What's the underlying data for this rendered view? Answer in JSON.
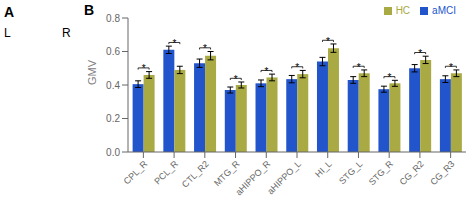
{
  "chart_data": {
    "type": "bar",
    "title": "B",
    "ylabel": "GMV",
    "categories": [
      "CPL_R",
      "PCL_R",
      "CTL_R2",
      "MTG_R",
      "aHIPPO_R",
      "aHIPPO_L",
      "HI_L",
      "STG_L",
      "STG_R",
      "CG_R2",
      "CG_R3"
    ],
    "series": [
      {
        "name": "aMCI",
        "color": "#2255cc",
        "values": [
          0.405,
          0.61,
          0.53,
          0.37,
          0.41,
          0.435,
          0.54,
          0.43,
          0.375,
          0.5,
          0.435
        ],
        "errors": [
          0.02,
          0.022,
          0.025,
          0.018,
          0.02,
          0.022,
          0.025,
          0.02,
          0.018,
          0.022,
          0.02
        ]
      },
      {
        "name": "HC",
        "color": "#aaaa44",
        "values": [
          0.46,
          0.49,
          0.575,
          0.4,
          0.445,
          0.465,
          0.62,
          0.47,
          0.41,
          0.55,
          0.47
        ],
        "errors": [
          0.02,
          0.022,
          0.025,
          0.018,
          0.02,
          0.022,
          0.025,
          0.02,
          0.018,
          0.022,
          0.02
        ]
      }
    ],
    "significance": {
      "label": "*",
      "values": [
        true,
        true,
        true,
        true,
        true,
        true,
        true,
        true,
        true,
        true,
        true
      ]
    },
    "ylim": [
      0.0,
      0.8
    ],
    "yticks": [
      {
        "value": 0.0,
        "label": "0.0"
      },
      0.2,
      0.4,
      0.6,
      0.8
    ],
    "grid": false,
    "legend": "upper right",
    "annotations": [
      {
        "text": "A"
      },
      {
        "text": "L"
      },
      {
        "text": "R"
      }
    ]
  }
}
